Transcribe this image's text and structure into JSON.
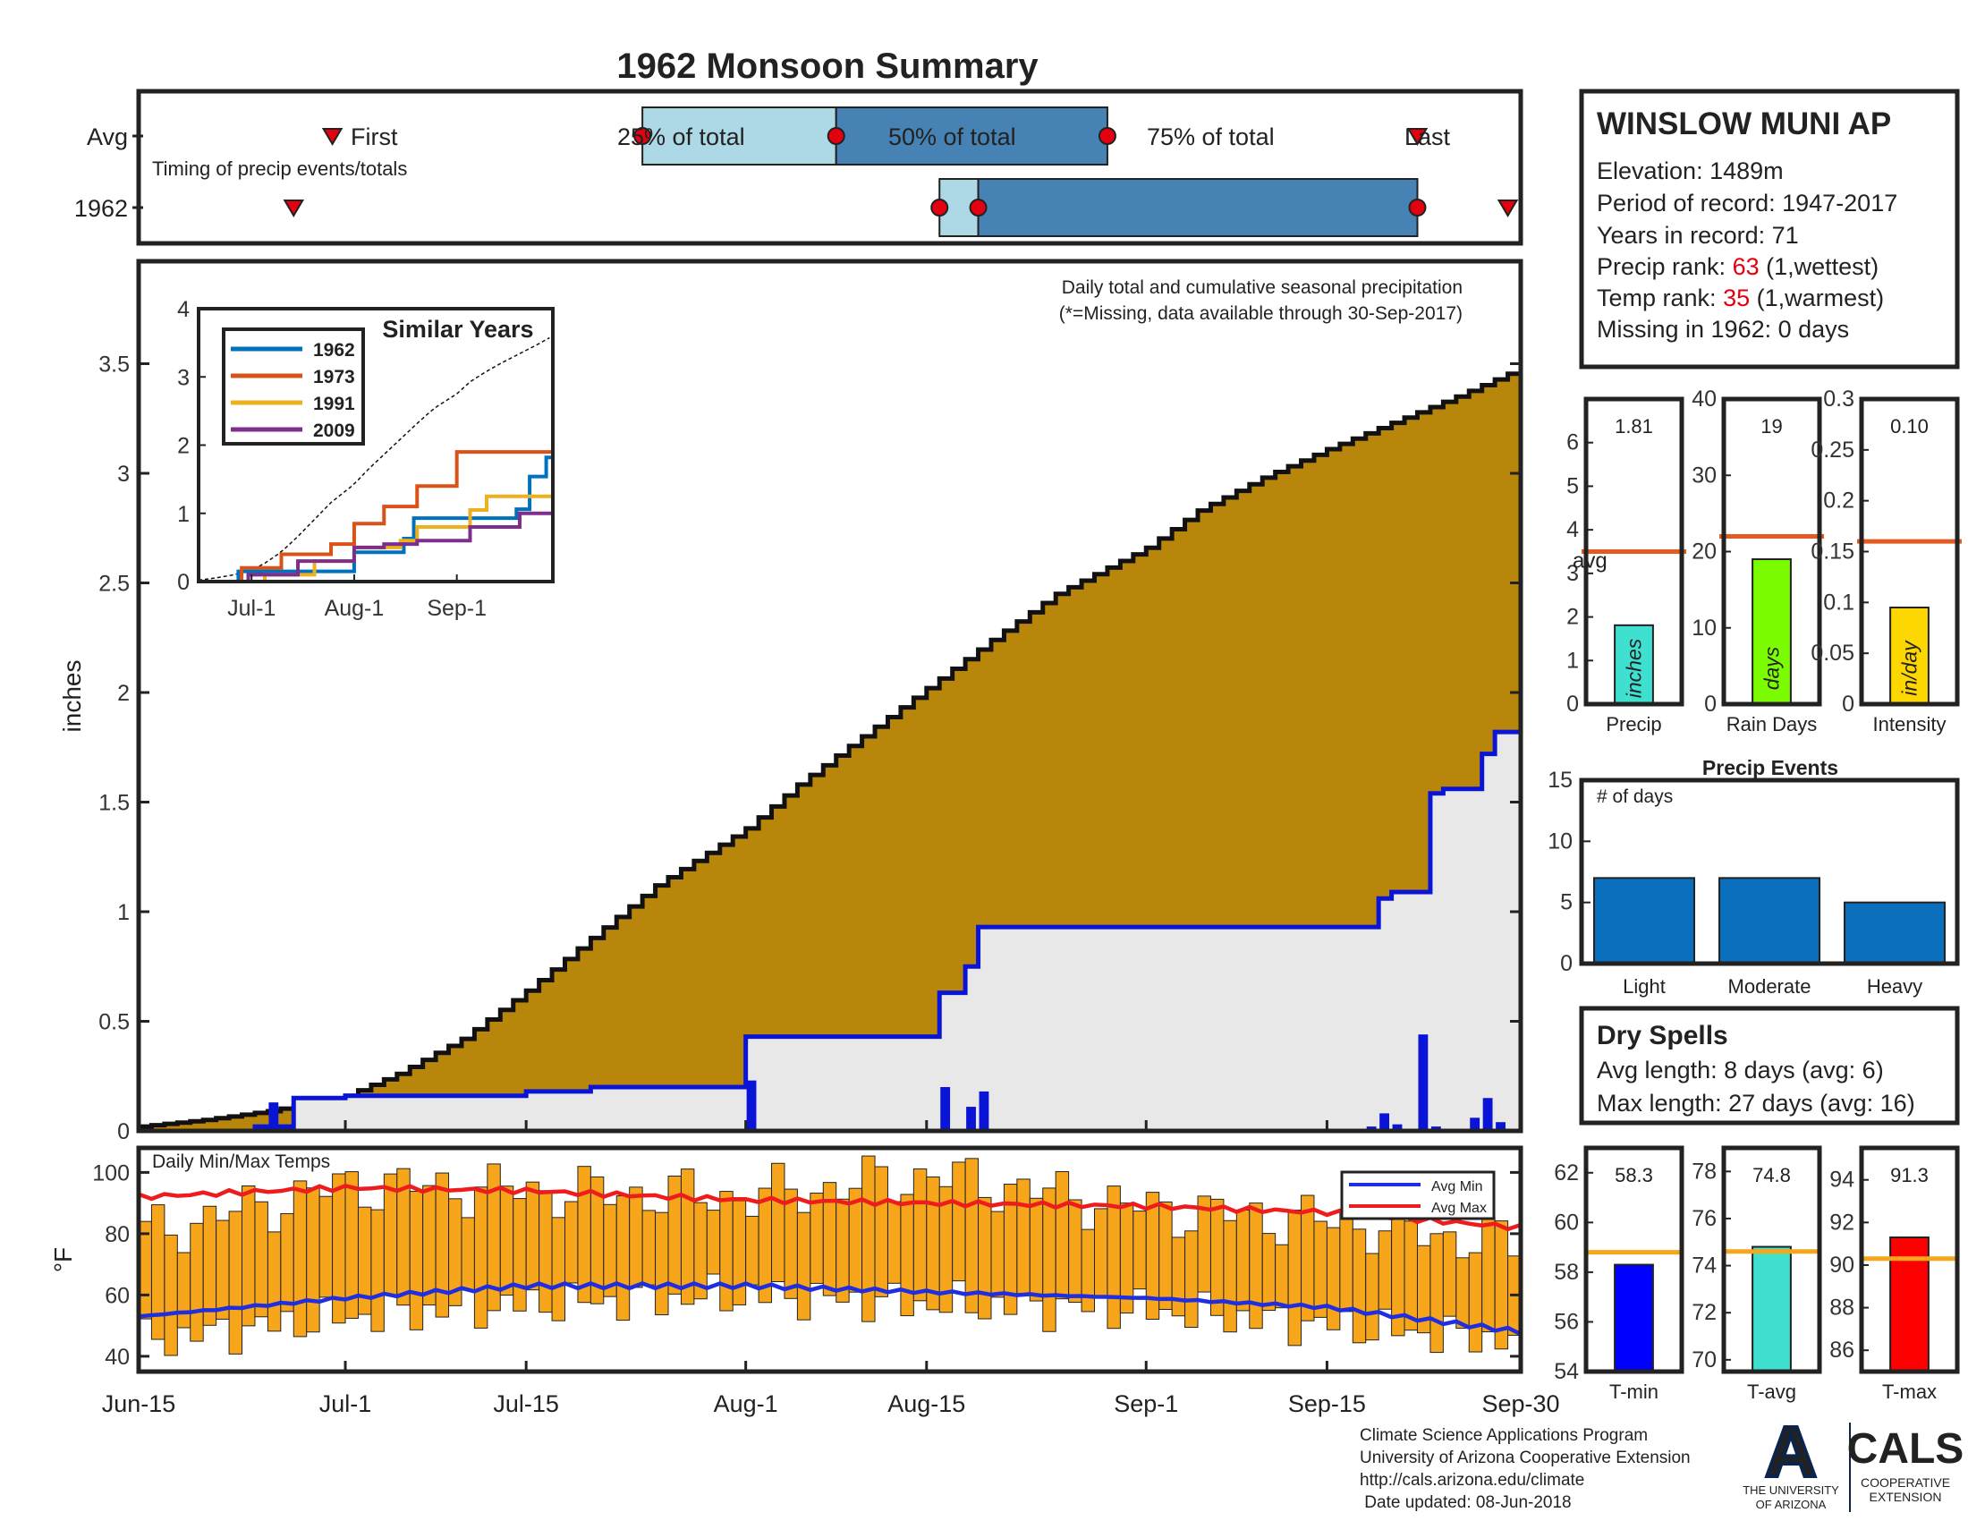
{
  "title": "1962 Monsoon Summary",
  "timing_panel": {
    "row_labels": [
      "Avg",
      "1962"
    ],
    "subtitle": "Timing of precip events/totals",
    "first_label": "First",
    "last_label": "Last",
    "pct25_label": "25% of total",
    "pct50_label": "50% of total",
    "pct75_label": "75% of total",
    "avg": {
      "first": "Jun-30",
      "q25": "Jul-24",
      "q50": "Aug-8",
      "q75": "Aug-29",
      "last": "Sep-22"
    },
    "year": {
      "first": "Jun-27",
      "q25": "Aug-16",
      "q50": "Aug-19",
      "q75": "Sep-22",
      "last": "Sep-29"
    }
  },
  "station_box": {
    "station": "WINSLOW MUNI AP",
    "elevation": "Elevation: 1489m",
    "period": "Period of record: 1947-2017",
    "years": "Years in record: 71",
    "precip_rank_prefix": "Precip rank: ",
    "precip_rank": "63",
    "precip_rank_suffix": " (1,wettest)",
    "temp_rank_prefix": "Temp rank: ",
    "temp_rank": "35",
    "temp_rank_suffix": " (1,warmest)",
    "missing": "Missing in 1962: 0 days"
  },
  "main_chart": {
    "ylabel": "inches",
    "note1": "Daily total and cumulative seasonal precipitation",
    "note2": "(*=Missing, data available through 30-Sep-2017)",
    "x_tick_labels": [
      "Jun-15",
      "Jul-1",
      "Jul-15",
      "Aug-1",
      "Aug-15",
      "Sep-1",
      "Sep-15",
      "Sep-30"
    ],
    "y_tick_labels": [
      "0",
      "0.5",
      "1",
      "1.5",
      "2",
      "2.5",
      "3",
      "3.5"
    ]
  },
  "inset": {
    "title": "Similar Years",
    "x_tick_labels": [
      "Jul-1",
      "Aug-1",
      "Sep-1"
    ],
    "y_tick_labels": [
      "0",
      "1",
      "2",
      "3",
      "4"
    ],
    "legend": [
      "1962",
      "1973",
      "1991",
      "2009"
    ]
  },
  "temp_chart": {
    "title": "Daily Min/Max Temps",
    "ylabel": "°F",
    "y_tick_labels": [
      "40",
      "60",
      "80",
      "100"
    ],
    "legend_min": "Avg Min",
    "legend_max": "Avg Max"
  },
  "stat_bars": {
    "precip": {
      "value_label": "1.81",
      "unit": "inches",
      "name": "Precip",
      "avg_label": "avg",
      "ticks": [
        "0",
        "1",
        "2",
        "3",
        "4",
        "5",
        "6"
      ]
    },
    "raindays": {
      "value_label": "19",
      "unit": "days",
      "name": "Rain Days",
      "ticks": [
        "0",
        "10",
        "20",
        "30",
        "40"
      ]
    },
    "intensity": {
      "value_label": "0.10",
      "unit": "in/day",
      "name": "Intensity",
      "ticks": [
        "0",
        "0.05",
        "0.1",
        "0.15",
        "0.2",
        "0.25",
        "0.3"
      ]
    }
  },
  "precip_events": {
    "title": "Precip Events",
    "ylabel": "# of days",
    "ticks": [
      "0",
      "5",
      "10",
      "15"
    ]
  },
  "dry_spells": {
    "title": "Dry Spells",
    "avg_line": "Avg length: 8 days (avg: 6)",
    "max_line": "Max length: 27 days (avg: 16)"
  },
  "temp_bars": {
    "tmin": {
      "value_label": "58.3",
      "name": "T-min",
      "ticks": [
        "54",
        "56",
        "58",
        "60",
        "62"
      ]
    },
    "tavg": {
      "value_label": "74.8",
      "name": "T-avg",
      "ticks": [
        "70",
        "72",
        "74",
        "76",
        "78"
      ]
    },
    "tmax": {
      "value_label": "91.3",
      "name": "T-max",
      "ticks": [
        "86",
        "88",
        "90",
        "92",
        "94"
      ]
    }
  },
  "footer": {
    "line1": "Climate Science Applications Program",
    "line2": "University of Arizona Cooperative Extension",
    "line3": "http://cals.arizona.edu/climate",
    "line4": " Date updated: 08-Jun-2018"
  },
  "logos": {
    "ua_letter": "A",
    "ua_line1": "THE UNIVERSITY",
    "ua_line2": "OF ARIZONA",
    "cals_title": "CALS",
    "cals_line1": "COOPERATIVE",
    "cals_line2": "EXTENSION"
  },
  "colors": {
    "title": "#e3000f",
    "cumulative_avg": "#b8860b",
    "year_line": "#0a14d6",
    "daily_bar": "#0a14d6",
    "temp_bar": "#f7a51b",
    "avg_min": "#1f2ee0",
    "avg_max": "#ee1c1c",
    "light_blue": "#add8e6",
    "steel_blue": "#4682b4",
    "event_bar": "#0a6fbd",
    "dry_spell": "#8b4513",
    "avg_line_marker": "#e35b20",
    "tmin_bar": "#0000ff",
    "tavg_bar": "#40e0d0",
    "tmax_bar": "#ff0000",
    "rain_bar": "#7cfc00",
    "intensity_bar": "#ffd700",
    "series_1962": "#0072bd",
    "series_1973": "#d95319",
    "series_1991": "#edb120",
    "series_2009": "#7e2f8e"
  },
  "chart_data": [
    {
      "type": "area",
      "title": "Daily total and cumulative seasonal precipitation",
      "xlabel": "",
      "ylabel": "inches",
      "ylim": [
        0,
        4
      ],
      "x_range": [
        "Jun-15",
        "Sep-30"
      ],
      "series": [
        {
          "name": "Cumulative average",
          "x": [
            "Jun-15",
            "Jun-20",
            "Jun-25",
            "Jul-1",
            "Jul-5",
            "Jul-10",
            "Jul-15",
            "Jul-20",
            "Jul-25",
            "Aug-1",
            "Aug-5",
            "Aug-10",
            "Aug-15",
            "Aug-20",
            "Aug-25",
            "Sep-1",
            "Sep-5",
            "Sep-10",
            "Sep-15",
            "Sep-20",
            "Sep-25",
            "Sep-30"
          ],
          "values": [
            0.02,
            0.05,
            0.09,
            0.16,
            0.26,
            0.42,
            0.64,
            0.88,
            1.12,
            1.38,
            1.58,
            1.8,
            2.02,
            2.24,
            2.45,
            2.66,
            2.83,
            2.98,
            3.11,
            3.23,
            3.35,
            3.48
          ]
        },
        {
          "name": "1962 cumulative",
          "x": [
            "Jun-15",
            "Jun-24",
            "Jun-27",
            "Jul-1",
            "Jul-15",
            "Jul-20",
            "Jul-31",
            "Aug-1",
            "Aug-15",
            "Aug-16",
            "Aug-18",
            "Aug-19",
            "Sep-18",
            "Sep-19",
            "Sep-20",
            "Sep-22",
            "Sep-23",
            "Sep-24",
            "Sep-25",
            "Sep-27",
            "Sep-28",
            "Sep-30"
          ],
          "values": [
            0,
            0.02,
            0.15,
            0.16,
            0.18,
            0.2,
            0.2,
            0.43,
            0.43,
            0.63,
            0.75,
            0.93,
            0.93,
            1.06,
            1.09,
            1.09,
            1.54,
            1.56,
            1.56,
            1.72,
            1.82,
            1.82
          ]
        },
        {
          "name": "1962 daily",
          "x": [
            "Jun-24",
            "Jun-25",
            "Jun-27",
            "Jul-1",
            "Aug-1",
            "Aug-16",
            "Aug-18",
            "Aug-19",
            "Sep-18",
            "Sep-19",
            "Sep-20",
            "Sep-22",
            "Sep-23",
            "Sep-24",
            "Sep-26",
            "Sep-27",
            "Sep-28"
          ],
          "values": [
            0.01,
            0.13,
            0.01,
            0.01,
            0.23,
            0.2,
            0.11,
            0.18,
            0.02,
            0.08,
            0.03,
            0.44,
            0.02,
            0.01,
            0.06,
            0.15,
            0.04
          ]
        }
      ]
    },
    {
      "type": "line",
      "title": "Similar Years",
      "x_range": [
        "Jun-15",
        "Sep-30"
      ],
      "ylim": [
        0,
        4
      ],
      "series": [
        {
          "name": "1962",
          "x": [
            "Jun-15",
            "Jun-27",
            "Aug-1",
            "Aug-16",
            "Aug-19",
            "Sep-19",
            "Sep-23",
            "Sep-28",
            "Sep-30"
          ],
          "values": [
            0,
            0.15,
            0.43,
            0.63,
            0.93,
            1.06,
            1.54,
            1.82,
            1.82
          ]
        },
        {
          "name": "1973",
          "x": [
            "Jun-15",
            "Jun-28",
            "Jul-10",
            "Jul-25",
            "Aug-1",
            "Aug-10",
            "Aug-20",
            "Aug-25",
            "Sep-1",
            "Sep-30"
          ],
          "values": [
            0,
            0.2,
            0.4,
            0.55,
            0.85,
            1.1,
            1.4,
            1.4,
            1.9,
            1.9
          ]
        },
        {
          "name": "1991",
          "x": [
            "Jun-15",
            "Jul-5",
            "Jul-20",
            "Aug-1",
            "Aug-15",
            "Aug-20",
            "Sep-5",
            "Sep-10",
            "Sep-30"
          ],
          "values": [
            0,
            0.1,
            0.3,
            0.5,
            0.6,
            0.8,
            1.05,
            1.25,
            1.25
          ]
        },
        {
          "name": "2009",
          "x": [
            "Jun-15",
            "Jun-30",
            "Jul-15",
            "Aug-1",
            "Aug-10",
            "Aug-20",
            "Sep-5",
            "Sep-20",
            "Sep-30"
          ],
          "values": [
            0,
            0.1,
            0.3,
            0.5,
            0.55,
            0.6,
            0.8,
            1.0,
            1.05
          ]
        }
      ]
    },
    {
      "type": "bar",
      "title": "Daily Min/Max Temps",
      "ylabel": "°F",
      "ylim": [
        35,
        108
      ],
      "x_range": [
        "Jun-15",
        "Sep-30"
      ],
      "series": [
        {
          "name": "Avg Min",
          "x": [
            "Jun-15",
            "Jul-1",
            "Jul-15",
            "Aug-1",
            "Aug-15",
            "Sep-1",
            "Sep-15",
            "Sep-30"
          ],
          "values": [
            53,
            59,
            63,
            63,
            61,
            59,
            56,
            48
          ]
        },
        {
          "name": "Avg Max",
          "x": [
            "Jun-15",
            "Jul-1",
            "Jul-15",
            "Aug-1",
            "Aug-15",
            "Sep-1",
            "Sep-15",
            "Sep-30"
          ],
          "values": [
            92,
            95,
            94,
            91,
            90,
            89,
            87,
            82
          ]
        },
        {
          "name": "1962 daily min",
          "x": [
            "Jun-15",
            "Jul-1",
            "Jul-15",
            "Aug-1",
            "Aug-15",
            "Sep-1",
            "Sep-15",
            "Sep-30"
          ],
          "values": [
            45,
            53,
            57,
            60,
            57,
            55,
            50,
            45
          ]
        },
        {
          "name": "1962 daily max",
          "x": [
            "Jun-15",
            "Jul-1",
            "Jul-15",
            "Aug-1",
            "Aug-15",
            "Sep-1",
            "Sep-15",
            "Sep-30"
          ],
          "values": [
            80,
            96,
            94,
            92,
            99,
            88,
            84,
            76
          ]
        }
      ]
    },
    {
      "type": "bar",
      "title": "Precip",
      "categories": [
        "1962"
      ],
      "values": [
        1.81
      ],
      "average": 3.5,
      "ylim": [
        0,
        7
      ]
    },
    {
      "type": "bar",
      "title": "Rain Days",
      "categories": [
        "1962"
      ],
      "values": [
        19
      ],
      "average": 22,
      "ylim": [
        0,
        40
      ]
    },
    {
      "type": "bar",
      "title": "Intensity",
      "categories": [
        "1962"
      ],
      "values": [
        0.095
      ],
      "average": 0.16,
      "ylim": [
        0,
        0.3
      ]
    },
    {
      "type": "bar",
      "title": "Precip Events",
      "ylabel": "# of days",
      "categories": [
        "Light",
        "Moderate",
        "Heavy"
      ],
      "values": [
        7,
        7,
        5
      ],
      "ylim": [
        0,
        15
      ]
    },
    {
      "type": "bar",
      "title": "T-min",
      "categories": [
        "1962"
      ],
      "values": [
        58.3
      ],
      "average": 58.8,
      "ylim": [
        54,
        63
      ]
    },
    {
      "type": "bar",
      "title": "T-avg",
      "categories": [
        "1962"
      ],
      "values": [
        74.8
      ],
      "average": 74.6,
      "ylim": [
        69.5,
        79
      ]
    },
    {
      "type": "bar",
      "title": "T-max",
      "categories": [
        "1962"
      ],
      "values": [
        91.3
      ],
      "average": 90.3,
      "ylim": [
        85,
        95.5
      ]
    }
  ]
}
